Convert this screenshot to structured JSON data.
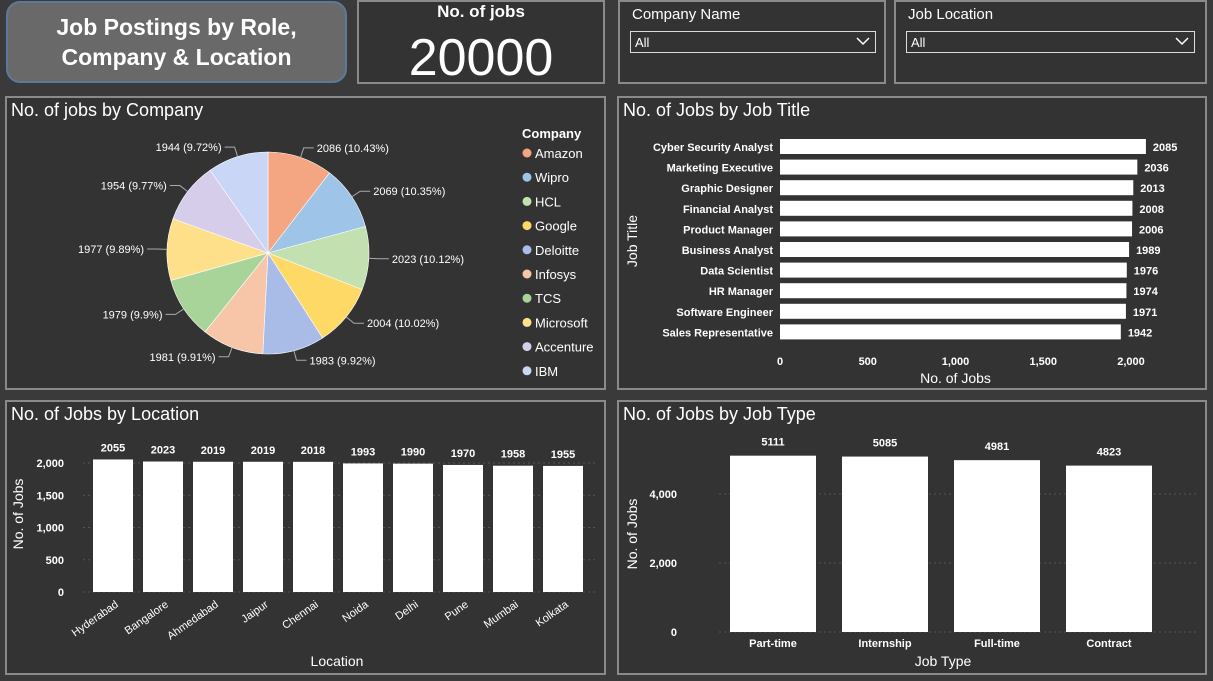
{
  "header": {
    "title_line1": "Job Postings by Role,",
    "title_line2": "Company & Location"
  },
  "kpi": {
    "label": "No. of jobs",
    "value": "20000"
  },
  "slicers": [
    {
      "label": "Company Name",
      "value": "All"
    },
    {
      "label": "Job Location",
      "value": "All"
    }
  ],
  "colors": {
    "background": "#3a3a3a",
    "panel": "#333333",
    "bar": "#ffffff",
    "pie": [
      "#f4a582",
      "#9ec4e8",
      "#c2e0b0",
      "#ffd966",
      "#a9bce8",
      "#f7c6a8",
      "#a8d49a",
      "#ffe08a",
      "#d5cdea",
      "#c9d6f5"
    ]
  },
  "chart_data": [
    {
      "type": "pie",
      "title": "No. of jobs by Company",
      "legend_title": "Company",
      "legend_position": "right",
      "categories": [
        "Amazon",
        "Wipro",
        "HCL",
        "Google",
        "Deloitte",
        "Infosys",
        "TCS",
        "Microsoft",
        "Accenture",
        "IBM"
      ],
      "values": [
        2086,
        2069,
        2023,
        2004,
        1983,
        1981,
        1979,
        1977,
        1954,
        1944
      ],
      "labels": [
        "2086 (10.43%)",
        "2069 (10.35%)",
        "2023 (10.12%)",
        "2004 (10.02%)",
        "1983 (9.92%)",
        "1981 (9.91%)",
        "1979 (9.9%)",
        "1977 (9.89%)",
        "1954 (9.77%)",
        "1944 (9.72%)"
      ]
    },
    {
      "type": "bar",
      "orientation": "horizontal",
      "title": "No. of Jobs by Job Title",
      "xlabel": "No. of Jobs",
      "ylabel": "Job Title",
      "categories": [
        "Cyber Security Analyst",
        "Marketing Executive",
        "Graphic Designer",
        "Financial Analyst",
        "Product Manager",
        "Business Analyst",
        "Data Scientist",
        "HR Manager",
        "Software Engineer",
        "Sales Representative"
      ],
      "values": [
        2085,
        2036,
        2013,
        2008,
        2006,
        1989,
        1976,
        1974,
        1971,
        1942
      ],
      "xlim": [
        0,
        2000
      ],
      "ticks": [
        "0",
        "500",
        "1,000",
        "1,500",
        "2,000"
      ],
      "tick_values": [
        0,
        500,
        1000,
        1500,
        2000
      ]
    },
    {
      "type": "bar",
      "title": "No. of Jobs by Location",
      "xlabel": "Location",
      "ylabel": "No. of Jobs",
      "categories": [
        "Hyderabad",
        "Bangalore",
        "Ahmedabad",
        "Jaipur",
        "Chennai",
        "Noida",
        "Delhi",
        "Pune",
        "Mumbai",
        "Kolkata"
      ],
      "values": [
        2055,
        2023,
        2019,
        2019,
        2018,
        1993,
        1990,
        1970,
        1958,
        1955
      ],
      "ylim": [
        0,
        2000
      ],
      "ticks": [
        "0",
        "500",
        "1,000",
        "1,500",
        "2,000"
      ],
      "tick_values": [
        0,
        500,
        1000,
        1500,
        2000
      ]
    },
    {
      "type": "bar",
      "title": "No. of Jobs by Job Type",
      "xlabel": "Job Type",
      "ylabel": "No. of Jobs",
      "categories": [
        "Part-time",
        "Internship",
        "Full-time",
        "Contract"
      ],
      "values": [
        5111,
        5085,
        4981,
        4823
      ],
      "ylim": [
        0,
        4000
      ],
      "ticks": [
        "0",
        "2,000",
        "4,000"
      ],
      "tick_values": [
        0,
        2000,
        4000
      ]
    }
  ]
}
